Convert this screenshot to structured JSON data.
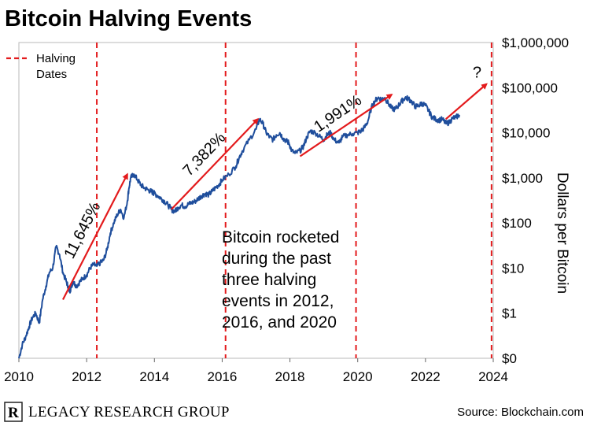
{
  "title": "Bitcoin Halving Events",
  "legend": {
    "label_line1": "Halving",
    "label_line2": "Dates",
    "color": "#e31a1c"
  },
  "annotation": {
    "lines": [
      "Bitcoin rocketed",
      "during the past",
      "three halving",
      "events in 2012,",
      "2016, and 2020"
    ]
  },
  "brand": {
    "logo_letter": "R",
    "name": "LEGACY RESEARCH GROUP"
  },
  "source": "Source: Blockchain.com",
  "chart_data": {
    "type": "line",
    "title": "Bitcoin Halving Events",
    "xlabel": "",
    "ylabel": "Dollars per Bitcoin",
    "yscale": "log",
    "xlim": [
      2010,
      2024
    ],
    "ylim": [
      0.1,
      1000000
    ],
    "x_ticks": [
      2010,
      2012,
      2014,
      2016,
      2018,
      2020,
      2022,
      2024
    ],
    "x_tick_labels": [
      "2010",
      "2012",
      "2014",
      "2016",
      "2018",
      "2020",
      "2022",
      "2024"
    ],
    "y_ticks": [
      0.1,
      1,
      10,
      100,
      1000,
      10000,
      100000,
      1000000
    ],
    "y_tick_labels": [
      "$0",
      "$1",
      "$10",
      "$100",
      "$1,000",
      "$10,000",
      "$100,000",
      "$1,000,000"
    ],
    "series": [
      {
        "name": "Bitcoin price",
        "color": "#1f4e9c",
        "x": [
          2010.0,
          2010.1,
          2010.2,
          2010.3,
          2010.4,
          2010.5,
          2010.6,
          2010.7,
          2010.8,
          2010.9,
          2011.0,
          2011.1,
          2011.2,
          2011.3,
          2011.4,
          2011.45,
          2011.5,
          2011.55,
          2011.6,
          2011.7,
          2011.8,
          2011.9,
          2012.0,
          2012.1,
          2012.2,
          2012.3,
          2012.4,
          2012.5,
          2012.6,
          2012.7,
          2012.8,
          2012.9,
          2013.0,
          2013.1,
          2013.2,
          2013.25,
          2013.3,
          2013.4,
          2013.5,
          2013.6,
          2013.7,
          2013.8,
          2013.9,
          2013.95,
          2014.0,
          2014.1,
          2014.2,
          2014.3,
          2014.4,
          2014.5,
          2014.6,
          2014.7,
          2014.8,
          2014.9,
          2015.0,
          2015.1,
          2015.2,
          2015.3,
          2015.4,
          2015.5,
          2015.6,
          2015.7,
          2015.8,
          2015.9,
          2016.0,
          2016.2,
          2016.4,
          2016.5,
          2016.6,
          2016.8,
          2017.0,
          2017.1,
          2017.2,
          2017.3,
          2017.4,
          2017.5,
          2017.6,
          2017.7,
          2017.8,
          2017.9,
          2017.97,
          2018.05,
          2018.15,
          2018.3,
          2018.4,
          2018.5,
          2018.6,
          2018.75,
          2018.9,
          2019.0,
          2019.1,
          2019.2,
          2019.3,
          2019.45,
          2019.55,
          2019.7,
          2019.85,
          2020.0,
          2020.1,
          2020.2,
          2020.3,
          2020.4,
          2020.5,
          2020.6,
          2020.7,
          2020.8,
          2020.9,
          2021.0,
          2021.1,
          2021.2,
          2021.3,
          2021.4,
          2021.5,
          2021.6,
          2021.7,
          2021.8,
          2021.9,
          2022.0,
          2022.1,
          2022.2,
          2022.3,
          2022.4,
          2022.5,
          2022.6,
          2022.7,
          2022.8,
          2022.9,
          2023.0
        ],
        "values": [
          0.1,
          0.2,
          0.3,
          0.5,
          0.8,
          1,
          0.6,
          2,
          4,
          8,
          10,
          30,
          20,
          8,
          5,
          4,
          3,
          4,
          5,
          4,
          5,
          6,
          7,
          10,
          12,
          11,
          13,
          15,
          25,
          60,
          100,
          150,
          200,
          130,
          300,
          600,
          1000,
          1200,
          900,
          700,
          600,
          550,
          500,
          480,
          450,
          400,
          350,
          300,
          250,
          200,
          180,
          220,
          250,
          230,
          260,
          280,
          300,
          350,
          400,
          450,
          420,
          500,
          600,
          700,
          900,
          1200,
          1800,
          2800,
          4000,
          7000,
          12000,
          20000,
          16000,
          10000,
          8000,
          7000,
          9000,
          10000,
          7500,
          6500,
          6000,
          4000,
          3500,
          4000,
          5000,
          8000,
          11000,
          10000,
          8000,
          7000,
          9000,
          10000,
          7000,
          6000,
          8000,
          9000,
          9500,
          10000,
          11000,
          13000,
          18000,
          35000,
          50000,
          60000,
          55000,
          60000,
          45000,
          35000,
          33000,
          40000,
          50000,
          60000,
          57000,
          48000,
          38000,
          40000,
          45000,
          40000,
          30000,
          22000,
          20000,
          19000,
          20000,
          16000,
          17000,
          21000,
          22000,
          25000
        ]
      }
    ],
    "halving_dates": [
      2012.3,
      2016.1,
      2019.95,
      2023.95
    ],
    "trend_arrows": [
      {
        "from": [
          2011.3,
          2
        ],
        "to": [
          2013.2,
          1200
        ],
        "label": "11,645%"
      },
      {
        "from": [
          2014.5,
          200
        ],
        "to": [
          2017.05,
          20000
        ],
        "label": "7,382%"
      },
      {
        "from": [
          2018.3,
          3000
        ],
        "to": [
          2021.0,
          70000
        ],
        "label": "1,991%"
      },
      {
        "from": [
          2022.6,
          20000
        ],
        "to": [
          2023.8,
          120000
        ],
        "label": "?"
      }
    ]
  }
}
